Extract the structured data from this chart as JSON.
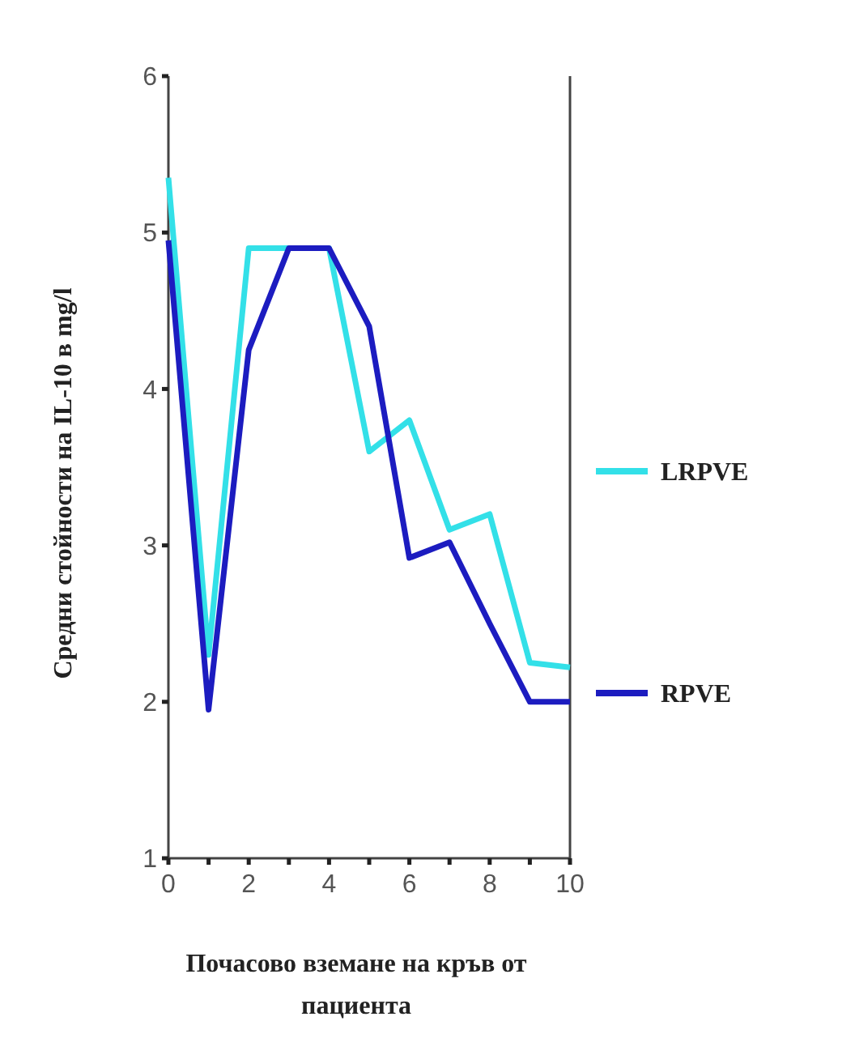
{
  "chart_data": {
    "type": "line",
    "ylabel": "Средни стойности на IL-10 в mg/l",
    "xlabel": "Почасово вземане на кръв от пациента",
    "x": [
      0,
      1,
      2,
      3,
      4,
      5,
      6,
      7,
      8,
      9,
      10
    ],
    "series": [
      {
        "name": "LRPVE",
        "color": "#33e0e8",
        "values": [
          5.35,
          2.3,
          4.9,
          4.9,
          4.9,
          3.6,
          3.8,
          3.1,
          3.2,
          2.25,
          2.22
        ]
      },
      {
        "name": "RPVE",
        "color": "#1c1cc0",
        "values": [
          4.95,
          1.95,
          4.25,
          4.9,
          4.9,
          4.4,
          2.92,
          3.02,
          2.5,
          2.0,
          2.0
        ]
      }
    ],
    "xlim": [
      0,
      10
    ],
    "ylim": [
      1,
      6
    ],
    "xticks": [
      0,
      {
        "value": 1,
        "label": null
      },
      2,
      {
        "value": 3,
        "label": null
      },
      4,
      {
        "value": 5,
        "label": null
      },
      6,
      {
        "value": 7,
        "label": null
      },
      8,
      {
        "value": 9,
        "label": null
      },
      10
    ],
    "yticks": [
      1,
      2,
      3,
      4,
      5,
      6
    ],
    "legend": "right",
    "grid": false,
    "marker": "none",
    "line_style": "solid"
  }
}
